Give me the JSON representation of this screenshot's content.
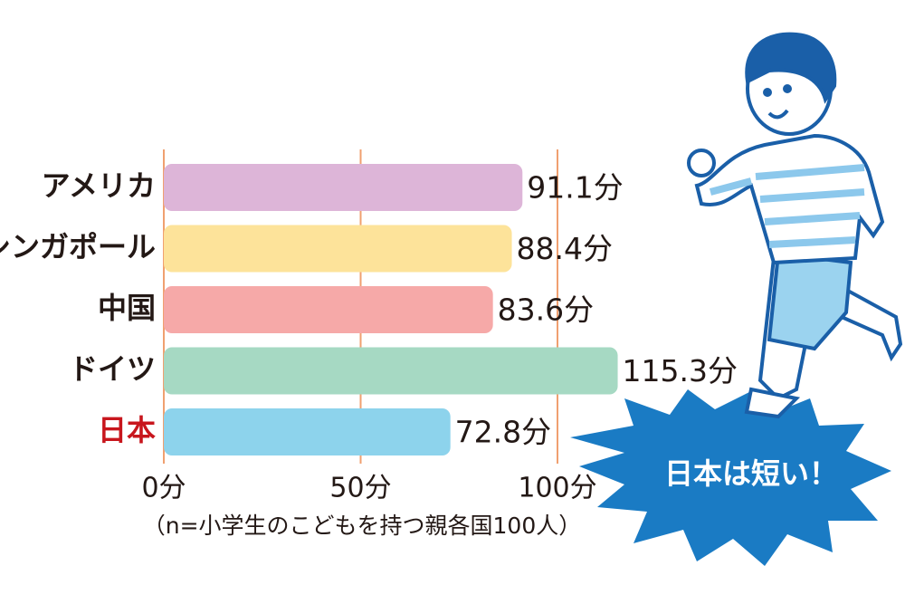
{
  "chart_data": {
    "type": "bar",
    "orientation": "horizontal",
    "categories": [
      "アメリカ",
      "シンガポール",
      "中国",
      "ドイツ",
      "日本"
    ],
    "values": [
      91.1,
      88.4,
      83.6,
      115.3,
      72.8
    ],
    "value_labels": [
      "91.1分",
      "88.4分",
      "83.6分",
      "115.3分",
      "72.8分"
    ],
    "colors": [
      "#ddb5d8",
      "#fde39a",
      "#f6a9a8",
      "#a6d9c3",
      "#8dd3ec"
    ],
    "category_colors": [
      "#231815",
      "#231815",
      "#231815",
      "#231815",
      "#c8161d"
    ],
    "xlim": [
      0,
      100
    ],
    "xticks": [
      {
        "value": 0,
        "label": "0分"
      },
      {
        "value": 50,
        "label": "50分"
      },
      {
        "value": 100,
        "label": "100分"
      }
    ],
    "grid": true,
    "grid_color": "#f0a070",
    "note": "（n=小学生のこどもを持つ親各国100人）",
    "annotation": "日本は短い！"
  }
}
